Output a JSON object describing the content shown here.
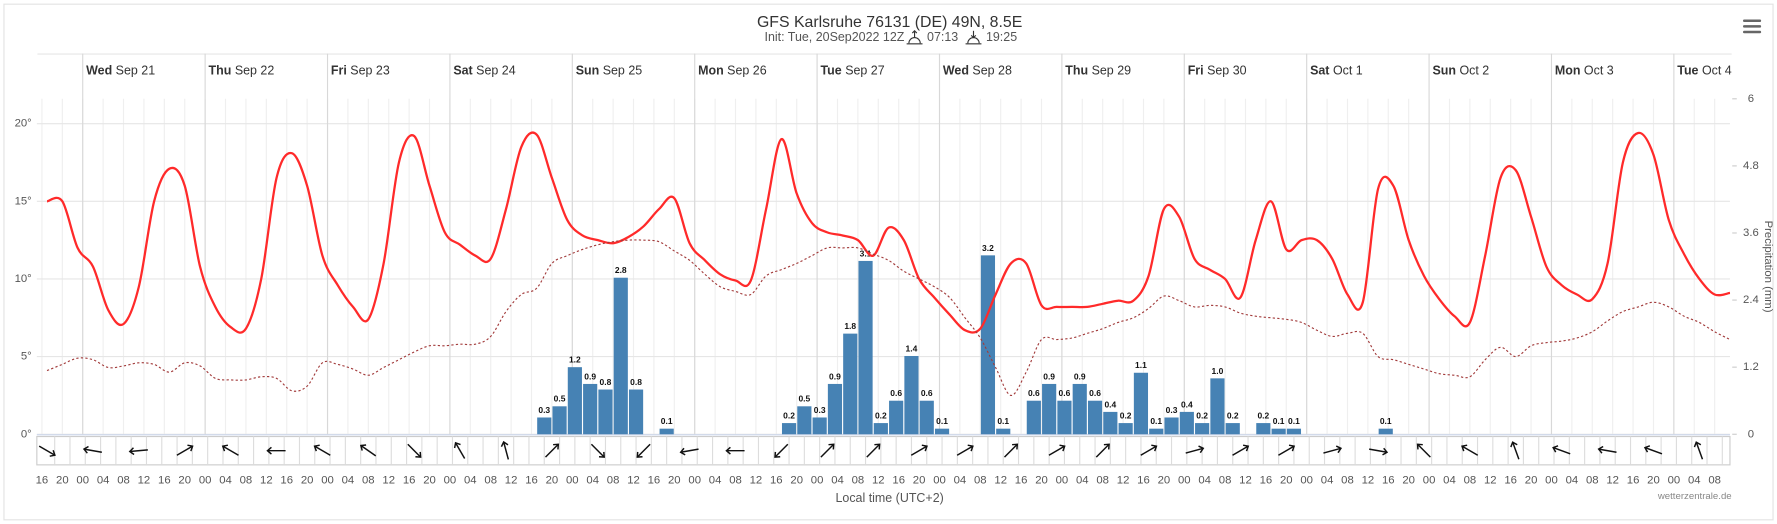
{
  "chart_data": {
    "type": "line",
    "title": "GFS Karlsruhe 76131 (DE) 49N, 8.5E",
    "subtitle": "Init: Tue, 20Sep2022 12Z",
    "sunrise": "07:13",
    "sunset": "19:25",
    "x_label": "Local time (UTC+2)",
    "y2_label": "Precipitation (mm)",
    "credit": "wetterzentrale.de",
    "xlim": [
      "2022-09-20 15:00",
      "2022-10-04 11:00"
    ],
    "ylim": [
      0,
      21.6
    ],
    "yticks": [
      {
        "value": 0,
        "label": "0°"
      },
      {
        "value": 5,
        "label": "5°"
      },
      {
        "value": 10,
        "label": "10°"
      },
      {
        "value": 15,
        "label": "15°"
      },
      {
        "value": 20,
        "label": "20°"
      }
    ],
    "y2lim": [
      0,
      6
    ],
    "y2ticks": [
      0,
      1.2,
      2.4,
      3.6,
      4.8,
      6
    ],
    "grid": true,
    "days": [
      {
        "value": "2022-09-21 00:00",
        "weekday": "Wed",
        "date": "Sep 21"
      },
      {
        "value": "2022-09-22 00:00",
        "weekday": "Thu",
        "date": "Sep 22"
      },
      {
        "value": "2022-09-23 00:00",
        "weekday": "Fri",
        "date": "Sep 23"
      },
      {
        "value": "2022-09-24 00:00",
        "weekday": "Sat",
        "date": "Sep 24"
      },
      {
        "value": "2022-09-25 00:00",
        "weekday": "Sun",
        "date": "Sep 25"
      },
      {
        "value": "2022-09-26 00:00",
        "weekday": "Mon",
        "date": "Sep 26"
      },
      {
        "value": "2022-09-27 00:00",
        "weekday": "Tue",
        "date": "Sep 27"
      },
      {
        "value": "2022-09-28 00:00",
        "weekday": "Wed",
        "date": "Sep 28"
      },
      {
        "value": "2022-09-29 00:00",
        "weekday": "Thu",
        "date": "Sep 29"
      },
      {
        "value": "2022-09-30 00:00",
        "weekday": "Fri",
        "date": "Sep 30"
      },
      {
        "value": "2022-10-01 00:00",
        "weekday": "Sat",
        "date": "Oct 1"
      },
      {
        "value": "2022-10-02 00:00",
        "weekday": "Sun",
        "date": "Oct 2"
      },
      {
        "value": "2022-10-03 00:00",
        "weekday": "Mon",
        "date": "Oct 3"
      },
      {
        "value": "2022-10-04 00:00",
        "weekday": "Tue",
        "date": "Oct 4"
      }
    ],
    "xticks": [
      {
        "value": "2022-09-20 16:00",
        "label": "16"
      },
      {
        "value": "2022-09-20 20:00",
        "label": "20"
      },
      {
        "value": "2022-09-21 00:00",
        "label": "00"
      },
      {
        "value": "2022-09-21 04:00",
        "label": "04"
      },
      {
        "value": "2022-09-21 08:00",
        "label": "08"
      },
      {
        "value": "2022-09-21 12:00",
        "label": "12"
      },
      {
        "value": "2022-09-21 16:00",
        "label": "16"
      },
      {
        "value": "2022-09-21 20:00",
        "label": "20"
      },
      {
        "value": "2022-09-22 00:00",
        "label": "00"
      },
      {
        "value": "2022-09-22 04:00",
        "label": "04"
      },
      {
        "value": "2022-09-22 08:00",
        "label": "08"
      },
      {
        "value": "2022-09-22 12:00",
        "label": "12"
      },
      {
        "value": "2022-09-22 16:00",
        "label": "16"
      },
      {
        "value": "2022-09-22 20:00",
        "label": "20"
      },
      {
        "value": "2022-09-23 00:00",
        "label": "00"
      },
      {
        "value": "2022-09-23 04:00",
        "label": "04"
      },
      {
        "value": "2022-09-23 08:00",
        "label": "08"
      },
      {
        "value": "2022-09-23 12:00",
        "label": "12"
      },
      {
        "value": "2022-09-23 16:00",
        "label": "16"
      },
      {
        "value": "2022-09-23 20:00",
        "label": "20"
      },
      {
        "value": "2022-09-24 00:00",
        "label": "00"
      },
      {
        "value": "2022-09-24 04:00",
        "label": "04"
      },
      {
        "value": "2022-09-24 08:00",
        "label": "08"
      },
      {
        "value": "2022-09-24 12:00",
        "label": "12"
      },
      {
        "value": "2022-09-24 16:00",
        "label": "16"
      },
      {
        "value": "2022-09-24 20:00",
        "label": "20"
      },
      {
        "value": "2022-09-25 00:00",
        "label": "00"
      },
      {
        "value": "2022-09-25 04:00",
        "label": "04"
      },
      {
        "value": "2022-09-25 08:00",
        "label": "08"
      },
      {
        "value": "2022-09-25 12:00",
        "label": "12"
      },
      {
        "value": "2022-09-25 16:00",
        "label": "16"
      },
      {
        "value": "2022-09-25 20:00",
        "label": "20"
      },
      {
        "value": "2022-09-26 00:00",
        "label": "00"
      },
      {
        "value": "2022-09-26 04:00",
        "label": "04"
      },
      {
        "value": "2022-09-26 08:00",
        "label": "08"
      },
      {
        "value": "2022-09-26 12:00",
        "label": "12"
      },
      {
        "value": "2022-09-26 16:00",
        "label": "16"
      },
      {
        "value": "2022-09-26 20:00",
        "label": "20"
      },
      {
        "value": "2022-09-27 00:00",
        "label": "00"
      },
      {
        "value": "2022-09-27 04:00",
        "label": "04"
      },
      {
        "value": "2022-09-27 08:00",
        "label": "08"
      },
      {
        "value": "2022-09-27 12:00",
        "label": "12"
      },
      {
        "value": "2022-09-27 16:00",
        "label": "16"
      },
      {
        "value": "2022-09-27 20:00",
        "label": "20"
      },
      {
        "value": "2022-09-28 00:00",
        "label": "00"
      },
      {
        "value": "2022-09-28 04:00",
        "label": "04"
      },
      {
        "value": "2022-09-28 08:00",
        "label": "08"
      },
      {
        "value": "2022-09-28 12:00",
        "label": "12"
      },
      {
        "value": "2022-09-28 16:00",
        "label": "16"
      },
      {
        "value": "2022-09-28 20:00",
        "label": "20"
      },
      {
        "value": "2022-09-29 00:00",
        "label": "00"
      },
      {
        "value": "2022-09-29 04:00",
        "label": "04"
      },
      {
        "value": "2022-09-29 08:00",
        "label": "08"
      },
      {
        "value": "2022-09-29 12:00",
        "label": "12"
      },
      {
        "value": "2022-09-29 16:00",
        "label": "16"
      },
      {
        "value": "2022-09-29 20:00",
        "label": "20"
      },
      {
        "value": "2022-09-30 00:00",
        "label": "00"
      },
      {
        "value": "2022-09-30 04:00",
        "label": "04"
      },
      {
        "value": "2022-09-30 08:00",
        "label": "08"
      },
      {
        "value": "2022-09-30 12:00",
        "label": "12"
      },
      {
        "value": "2022-09-30 16:00",
        "label": "16"
      },
      {
        "value": "2022-09-30 20:00",
        "label": "20"
      },
      {
        "value": "2022-10-01 00:00",
        "label": "00"
      },
      {
        "value": "2022-10-01 04:00",
        "label": "04"
      },
      {
        "value": "2022-10-01 08:00",
        "label": "08"
      },
      {
        "value": "2022-10-01 12:00",
        "label": "12"
      },
      {
        "value": "2022-10-01 16:00",
        "label": "16"
      },
      {
        "value": "2022-10-01 20:00",
        "label": "20"
      },
      {
        "value": "2022-10-02 00:00",
        "label": "00"
      },
      {
        "value": "2022-10-02 04:00",
        "label": "04"
      },
      {
        "value": "2022-10-02 08:00",
        "label": "08"
      },
      {
        "value": "2022-10-02 12:00",
        "label": "12"
      },
      {
        "value": "2022-10-02 16:00",
        "label": "16"
      },
      {
        "value": "2022-10-02 20:00",
        "label": "20"
      },
      {
        "value": "2022-10-03 00:00",
        "label": "00"
      },
      {
        "value": "2022-10-03 04:00",
        "label": "04"
      },
      {
        "value": "2022-10-03 08:00",
        "label": "08"
      },
      {
        "value": "2022-10-03 12:00",
        "label": "12"
      },
      {
        "value": "2022-10-03 16:00",
        "label": "16"
      },
      {
        "value": "2022-10-03 20:00",
        "label": "20"
      },
      {
        "value": "2022-10-04 00:00",
        "label": "00"
      },
      {
        "value": "2022-10-04 04:00",
        "label": "04"
      },
      {
        "value": "2022-10-04 08:00",
        "label": "08"
      }
    ],
    "x": [
      "2022-09-20 17:00",
      "2022-09-20 20:00",
      "2022-09-20 23:00",
      "2022-09-21 02:00",
      "2022-09-21 05:00",
      "2022-09-21 08:00",
      "2022-09-21 11:00",
      "2022-09-21 14:00",
      "2022-09-21 17:00",
      "2022-09-21 20:00",
      "2022-09-21 23:00",
      "2022-09-22 02:00",
      "2022-09-22 05:00",
      "2022-09-22 08:00",
      "2022-09-22 11:00",
      "2022-09-22 14:00",
      "2022-09-22 17:00",
      "2022-09-22 20:00",
      "2022-09-22 23:00",
      "2022-09-23 02:00",
      "2022-09-23 05:00",
      "2022-09-23 08:00",
      "2022-09-23 11:00",
      "2022-09-23 14:00",
      "2022-09-23 17:00",
      "2022-09-23 20:00",
      "2022-09-23 23:00",
      "2022-09-24 02:00",
      "2022-09-24 05:00",
      "2022-09-24 08:00",
      "2022-09-24 11:00",
      "2022-09-24 14:00",
      "2022-09-24 17:00",
      "2022-09-24 20:00",
      "2022-09-24 23:00",
      "2022-09-25 02:00",
      "2022-09-25 05:00",
      "2022-09-25 08:00",
      "2022-09-25 11:00",
      "2022-09-25 14:00",
      "2022-09-25 17:00",
      "2022-09-25 20:00",
      "2022-09-25 23:00",
      "2022-09-26 02:00",
      "2022-09-26 05:00",
      "2022-09-26 08:00",
      "2022-09-26 11:00",
      "2022-09-26 14:00",
      "2022-09-26 17:00",
      "2022-09-26 20:00",
      "2022-09-26 23:00",
      "2022-09-27 02:00",
      "2022-09-27 05:00",
      "2022-09-27 08:00",
      "2022-09-27 11:00",
      "2022-09-27 14:00",
      "2022-09-27 17:00",
      "2022-09-27 20:00",
      "2022-09-27 23:00",
      "2022-09-28 02:00",
      "2022-09-28 05:00",
      "2022-09-28 08:00",
      "2022-09-28 11:00",
      "2022-09-28 14:00",
      "2022-09-28 17:00",
      "2022-09-28 20:00",
      "2022-09-28 23:00",
      "2022-09-29 02:00",
      "2022-09-29 05:00",
      "2022-09-29 08:00",
      "2022-09-29 11:00",
      "2022-09-29 14:00",
      "2022-09-29 17:00",
      "2022-09-29 20:00",
      "2022-09-29 23:00",
      "2022-09-30 02:00",
      "2022-09-30 05:00",
      "2022-09-30 08:00",
      "2022-09-30 11:00",
      "2022-09-30 14:00",
      "2022-09-30 17:00",
      "2022-09-30 20:00",
      "2022-09-30 23:00",
      "2022-10-01 02:00",
      "2022-10-01 05:00",
      "2022-10-01 08:00",
      "2022-10-01 11:00",
      "2022-10-01 14:00",
      "2022-10-01 17:00",
      "2022-10-01 20:00",
      "2022-10-01 23:00",
      "2022-10-02 02:00",
      "2022-10-02 05:00",
      "2022-10-02 08:00",
      "2022-10-02 11:00",
      "2022-10-02 14:00",
      "2022-10-02 17:00",
      "2022-10-02 20:00",
      "2022-10-02 23:00",
      "2022-10-03 02:00",
      "2022-10-03 05:00",
      "2022-10-03 08:00",
      "2022-10-03 11:00",
      "2022-10-03 14:00",
      "2022-10-03 17:00",
      "2022-10-03 20:00",
      "2022-10-03 23:00",
      "2022-10-04 02:00",
      "2022-10-04 05:00",
      "2022-10-04 08:00",
      "2022-10-04 11:00"
    ],
    "series": [
      {
        "type": "bar",
        "axis": "y2",
        "color": "#4682b4",
        "values": [
          null,
          null,
          null,
          null,
          null,
          null,
          null,
          null,
          null,
          null,
          null,
          null,
          null,
          null,
          null,
          null,
          null,
          null,
          null,
          null,
          null,
          null,
          null,
          null,
          null,
          null,
          null,
          null,
          null,
          null,
          null,
          null,
          null,
          0.3,
          0.5,
          1.2,
          0.9,
          0.8,
          2.8,
          0.8,
          null,
          0.1,
          null,
          null,
          null,
          null,
          null,
          null,
          null,
          0.2,
          0.5,
          0.3,
          0.9,
          1.8,
          3.1,
          0.2,
          0.6,
          1.4,
          0.6,
          0.1,
          null,
          null,
          3.2,
          0.1,
          null,
          0.6,
          0.9,
          0.6,
          0.9,
          0.6,
          0.4,
          0.2,
          1.1,
          0.1,
          0.3,
          0.4,
          0.2,
          1.0,
          0.2,
          null,
          0.2,
          0.1,
          0.1,
          null,
          null,
          null,
          null,
          null,
          0.1,
          null,
          null,
          null,
          null,
          null,
          null,
          null,
          null,
          null,
          null,
          null,
          null,
          null,
          null,
          null,
          null,
          null,
          null,
          null,
          null,
          null,
          null
        ],
        "value_labels": [
          null,
          null,
          null,
          null,
          null,
          null,
          null,
          null,
          null,
          null,
          null,
          null,
          null,
          null,
          null,
          null,
          null,
          null,
          null,
          null,
          null,
          null,
          null,
          null,
          null,
          null,
          null,
          null,
          null,
          null,
          null,
          null,
          null,
          "0.3",
          "0.5",
          "1.2",
          "0.9",
          "0.8",
          "2.8",
          "0.8",
          null,
          "0.1",
          null,
          null,
          null,
          null,
          null,
          null,
          null,
          "0.2",
          "0.5",
          "0.3",
          "0.9",
          "1.8",
          "3.1",
          "0.2",
          "0.6",
          "1.4",
          "0.6",
          "0.1",
          null,
          null,
          "3.2",
          "0.1",
          null,
          "0.6",
          "0.9",
          "0.6",
          "0.9",
          "0.6",
          "0.4",
          "0.2",
          "1.1",
          "0.1",
          "0.3",
          "0.4",
          "0.2",
          "1.0",
          "0.2",
          null,
          "0.2",
          "0.1",
          "0.1",
          null,
          null,
          null,
          null,
          null,
          "0.1",
          null,
          null,
          null,
          null,
          null,
          null,
          null,
          null,
          null,
          null,
          null,
          null,
          null,
          null,
          null,
          null,
          null,
          null,
          null,
          null,
          null,
          null
        ]
      },
      {
        "type": "line",
        "color": "#ff2a2a",
        "width": 2,
        "values": [
          15.0,
          15.0,
          12.0,
          10.8,
          8.0,
          7.1,
          9.5,
          15.0,
          17.1,
          16.0,
          10.8,
          8.2,
          6.9,
          6.8,
          10.0,
          16.5,
          18.1,
          16.0,
          11.5,
          9.6,
          8.2,
          7.4,
          11.0,
          17.5,
          19.2,
          16.0,
          13.0,
          12.2,
          11.5,
          11.3,
          14.5,
          18.5,
          19.3,
          16.5,
          13.8,
          12.8,
          12.5,
          12.3,
          12.7,
          13.4,
          14.5,
          15.2,
          12.3,
          11.2,
          10.3,
          9.9,
          9.9,
          14.5,
          19.0,
          15.5,
          13.6,
          13.0,
          12.8,
          12.5,
          11.5,
          13.3,
          12.5,
          10.0,
          8.8,
          7.7,
          6.7,
          6.8,
          9.0,
          11.0,
          11.0,
          8.3,
          8.2,
          8.2,
          8.2,
          8.4,
          8.6,
          8.6,
          10.2,
          14.5,
          14.0,
          11.3,
          10.6,
          10.0,
          8.8,
          12.5,
          15.0,
          11.9,
          12.5,
          12.5,
          11.3,
          9.0,
          8.5,
          15.8,
          16.0,
          12.5,
          10.2,
          8.7,
          7.6,
          7.2,
          11.5,
          16.5,
          17.0,
          14.0,
          10.8,
          9.6,
          9.0,
          8.7,
          11.0,
          17.5,
          19.4,
          18.0,
          13.8,
          11.6,
          10.0,
          9.0,
          9.1
        ]
      },
      {
        "type": "line",
        "color": "#a23b3b",
        "width": 1,
        "dashed": true,
        "values": [
          4.1,
          4.5,
          4.9,
          4.8,
          4.3,
          4.4,
          4.6,
          4.5,
          4.0,
          4.6,
          4.4,
          3.6,
          3.5,
          3.5,
          3.7,
          3.6,
          2.8,
          3.1,
          4.6,
          4.5,
          4.2,
          3.8,
          4.3,
          4.8,
          5.3,
          5.7,
          5.7,
          5.8,
          5.8,
          6.3,
          7.9,
          9.0,
          9.4,
          11.0,
          11.5,
          11.9,
          12.2,
          12.4,
          12.5,
          12.5,
          12.4,
          11.8,
          11.2,
          10.3,
          9.5,
          9.2,
          9.0,
          10.2,
          10.6,
          11.0,
          11.5,
          12.0,
          12.0,
          12.0,
          11.6,
          11.2,
          10.5,
          10.0,
          9.5,
          8.8,
          7.5,
          6.2,
          4.3,
          2.5,
          4.0,
          6.1,
          6.1,
          6.2,
          6.5,
          6.8,
          7.2,
          7.5,
          8.1,
          8.9,
          8.6,
          8.2,
          8.3,
          8.2,
          7.8,
          7.6,
          7.5,
          7.4,
          7.2,
          6.7,
          6.3,
          6.5,
          6.5,
          5.0,
          4.8,
          4.5,
          4.2,
          3.9,
          3.8,
          3.7,
          4.8,
          5.6,
          5.0,
          5.7,
          5.9,
          6.0,
          6.2,
          6.6,
          7.3,
          7.9,
          8.2,
          8.5,
          8.2,
          7.6,
          7.2,
          6.6,
          6.1
        ]
      }
    ],
    "wind_arrow_deg": [
      120,
      280,
      265,
      60,
      300,
      270,
      300,
      305,
      135,
      330,
      345,
      45,
      135,
      225,
      260,
      270,
      225,
      45,
      45,
      60,
      60,
      45,
      60,
      45,
      60,
      75,
      60,
      60,
      75,
      100,
      315,
      300,
      340,
      290,
      280,
      290,
      340
    ]
  }
}
